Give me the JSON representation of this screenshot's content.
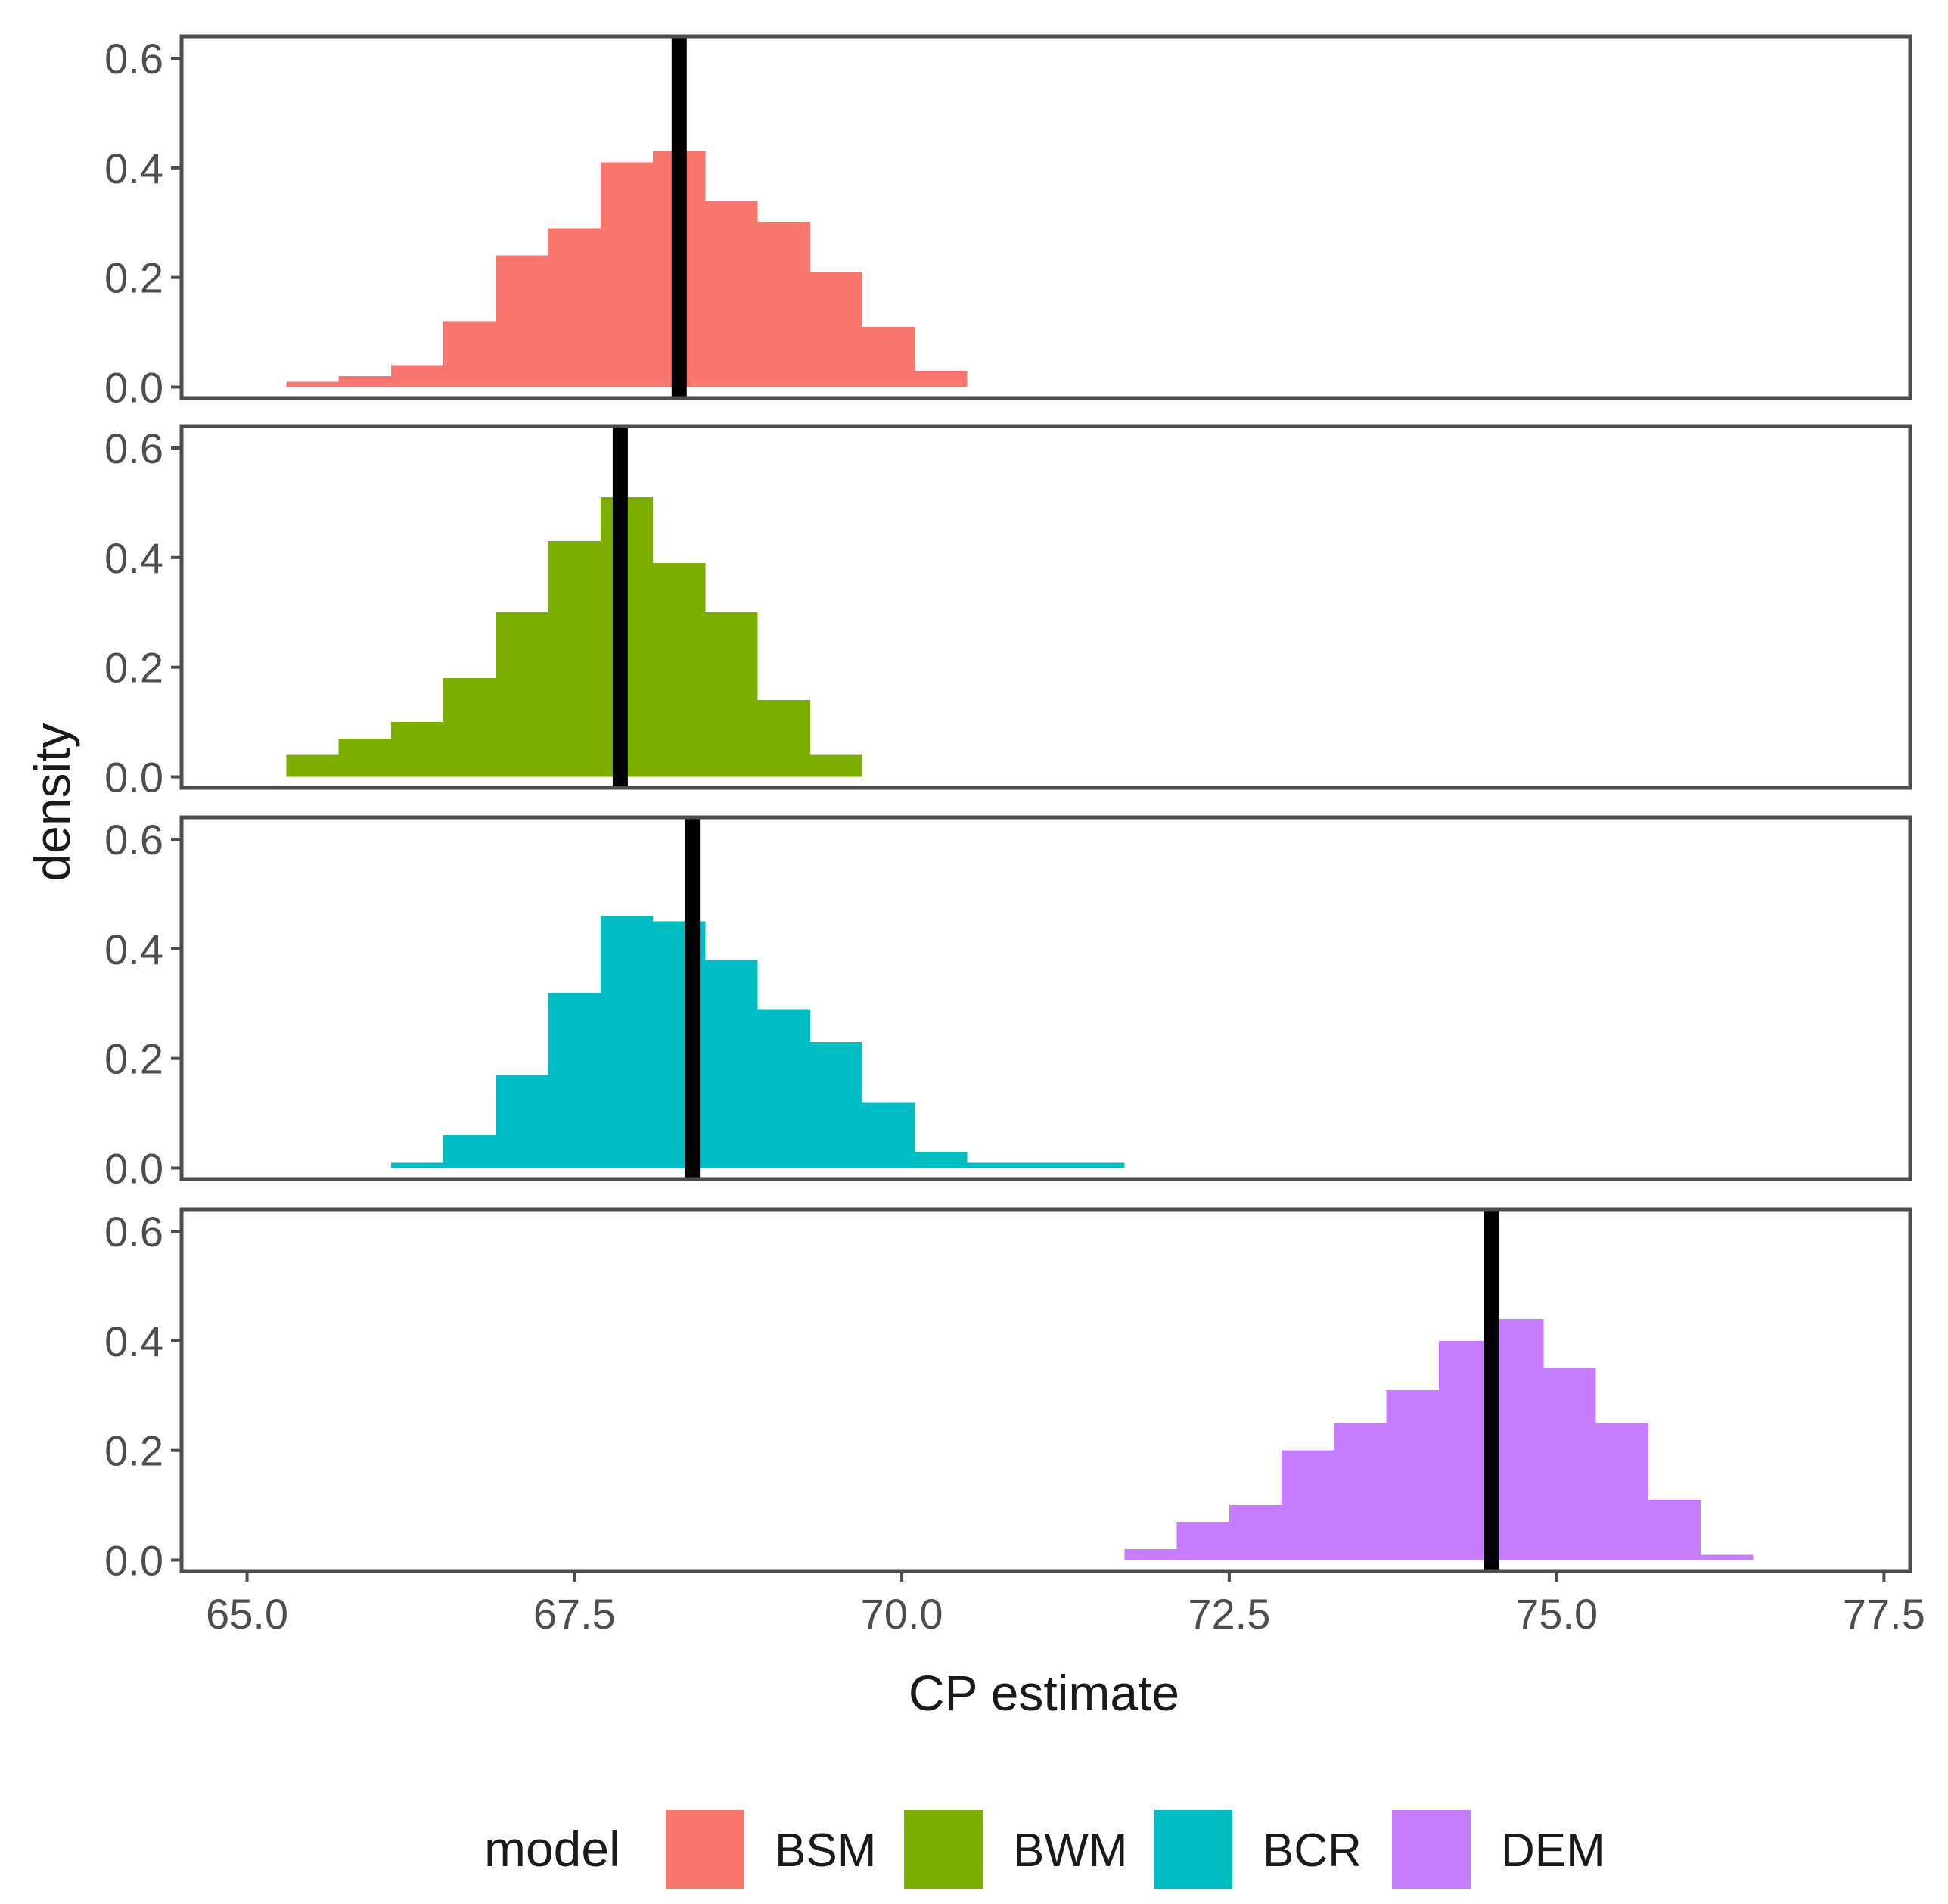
{
  "chart_data": {
    "type": "histogram",
    "facets": "stacked vertically, one panel per model",
    "xlabel": "CP estimate",
    "ylabel": "density",
    "xlim": [
      64.5,
      77.7
    ],
    "ylim": [
      -0.02,
      0.64
    ],
    "x_ticks": [
      65.0,
      67.5,
      70.0,
      72.5,
      75.0,
      77.5
    ],
    "x_tick_labels": [
      "65.0",
      "67.5",
      "70.0",
      "72.5",
      "75.0",
      "77.5"
    ],
    "y_ticks": [
      0.0,
      0.2,
      0.4,
      0.6
    ],
    "y_tick_labels": [
      "0.0",
      "0.2",
      "0.4",
      "0.6"
    ],
    "grid": false,
    "legend": {
      "title": "model",
      "placement": "bottom",
      "entries": [
        "BSM",
        "BWM",
        "BCR",
        "DEM"
      ]
    },
    "series": [
      {
        "name": "BSM",
        "color": "#F8766D",
        "mean_line": 68.3,
        "bins": [
          {
            "x0": 65.3,
            "x1": 65.7,
            "density": 0.01
          },
          {
            "x0": 65.7,
            "x1": 66.1,
            "density": 0.02
          },
          {
            "x0": 66.1,
            "x1": 66.5,
            "density": 0.04
          },
          {
            "x0": 66.5,
            "x1": 66.9,
            "density": 0.12
          },
          {
            "x0": 66.9,
            "x1": 67.3,
            "density": 0.24
          },
          {
            "x0": 67.3,
            "x1": 67.7,
            "density": 0.29
          },
          {
            "x0": 67.7,
            "x1": 68.1,
            "density": 0.41
          },
          {
            "x0": 68.1,
            "x1": 68.5,
            "density": 0.43
          },
          {
            "x0": 68.5,
            "x1": 68.9,
            "density": 0.34
          },
          {
            "x0": 68.9,
            "x1": 69.3,
            "density": 0.3
          },
          {
            "x0": 69.3,
            "x1": 69.7,
            "density": 0.21
          },
          {
            "x0": 69.7,
            "x1": 70.1,
            "density": 0.11
          },
          {
            "x0": 70.1,
            "x1": 70.5,
            "density": 0.03
          }
        ]
      },
      {
        "name": "BWM",
        "color": "#7CAE00",
        "mean_line": 67.85,
        "bins": [
          {
            "x0": 65.3,
            "x1": 65.7,
            "density": 0.04
          },
          {
            "x0": 65.7,
            "x1": 66.1,
            "density": 0.07
          },
          {
            "x0": 66.1,
            "x1": 66.5,
            "density": 0.1
          },
          {
            "x0": 66.5,
            "x1": 66.9,
            "density": 0.18
          },
          {
            "x0": 66.9,
            "x1": 67.3,
            "density": 0.3
          },
          {
            "x0": 67.3,
            "x1": 67.7,
            "density": 0.43
          },
          {
            "x0": 67.7,
            "x1": 68.1,
            "density": 0.51
          },
          {
            "x0": 68.1,
            "x1": 68.5,
            "density": 0.39
          },
          {
            "x0": 68.5,
            "x1": 68.9,
            "density": 0.3
          },
          {
            "x0": 68.9,
            "x1": 69.3,
            "density": 0.14
          },
          {
            "x0": 69.3,
            "x1": 69.7,
            "density": 0.04
          }
        ]
      },
      {
        "name": "BCR",
        "color": "#00BFC4",
        "mean_line": 68.4,
        "bins": [
          {
            "x0": 66.1,
            "x1": 66.5,
            "density": 0.01
          },
          {
            "x0": 66.5,
            "x1": 66.9,
            "density": 0.06
          },
          {
            "x0": 66.9,
            "x1": 67.3,
            "density": 0.17
          },
          {
            "x0": 67.3,
            "x1": 67.7,
            "density": 0.32
          },
          {
            "x0": 67.7,
            "x1": 68.1,
            "density": 0.46
          },
          {
            "x0": 68.1,
            "x1": 68.5,
            "density": 0.45
          },
          {
            "x0": 68.5,
            "x1": 68.9,
            "density": 0.38
          },
          {
            "x0": 68.9,
            "x1": 69.3,
            "density": 0.29
          },
          {
            "x0": 69.3,
            "x1": 69.7,
            "density": 0.23
          },
          {
            "x0": 69.7,
            "x1": 70.1,
            "density": 0.12
          },
          {
            "x0": 70.1,
            "x1": 70.5,
            "density": 0.03
          },
          {
            "x0": 70.5,
            "x1": 70.9,
            "density": 0.01
          },
          {
            "x0": 70.9,
            "x1": 71.3,
            "density": 0.01
          },
          {
            "x0": 71.3,
            "x1": 71.7,
            "density": 0.01
          }
        ]
      },
      {
        "name": "DEM",
        "color": "#C77CFF",
        "mean_line": 74.5,
        "bins": [
          {
            "x0": 71.7,
            "x1": 72.1,
            "density": 0.02
          },
          {
            "x0": 72.1,
            "x1": 72.5,
            "density": 0.07
          },
          {
            "x0": 72.5,
            "x1": 72.9,
            "density": 0.1
          },
          {
            "x0": 72.9,
            "x1": 73.3,
            "density": 0.2
          },
          {
            "x0": 73.3,
            "x1": 73.7,
            "density": 0.25
          },
          {
            "x0": 73.7,
            "x1": 74.1,
            "density": 0.31
          },
          {
            "x0": 74.1,
            "x1": 74.5,
            "density": 0.4
          },
          {
            "x0": 74.5,
            "x1": 74.9,
            "density": 0.44
          },
          {
            "x0": 74.9,
            "x1": 75.3,
            "density": 0.35
          },
          {
            "x0": 75.3,
            "x1": 75.7,
            "density": 0.25
          },
          {
            "x0": 75.7,
            "x1": 76.1,
            "density": 0.11
          },
          {
            "x0": 76.1,
            "x1": 76.5,
            "density": 0.01
          }
        ]
      }
    ]
  }
}
